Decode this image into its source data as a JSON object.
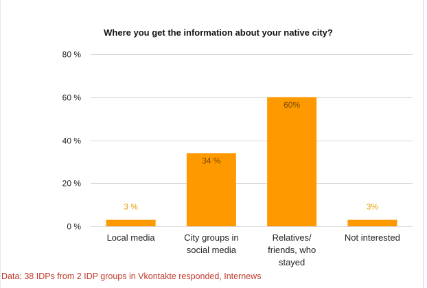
{
  "chart_data": {
    "type": "bar",
    "title": "Where you get the information about your native city?",
    "categories": [
      [
        "Local media"
      ],
      [
        "City groups in",
        "social media"
      ],
      [
        "Relatives/",
        "friends, who",
        "stayed"
      ],
      [
        "Not interested"
      ]
    ],
    "values": [
      3,
      34,
      60,
      3
    ],
    "data_labels": [
      "3 %",
      "34 %",
      "60%",
      "3%"
    ],
    "ylim": [
      0,
      80
    ],
    "yticks": [
      0,
      20,
      40,
      60,
      80
    ],
    "ytick_labels": [
      "0 %",
      "20 %",
      "40 %",
      "60 %",
      "80 %"
    ],
    "xlabel": "",
    "ylabel": "",
    "grid": true,
    "legend": "none",
    "colors": {
      "bar": "#ff9900",
      "label_outside": "#e69b00",
      "label_inside": "#7a4a00",
      "grid": "#d9d9d9"
    }
  },
  "source_note": "Data: 38 IDPs from 2 IDP groups in Vkontakte responded, Internews"
}
